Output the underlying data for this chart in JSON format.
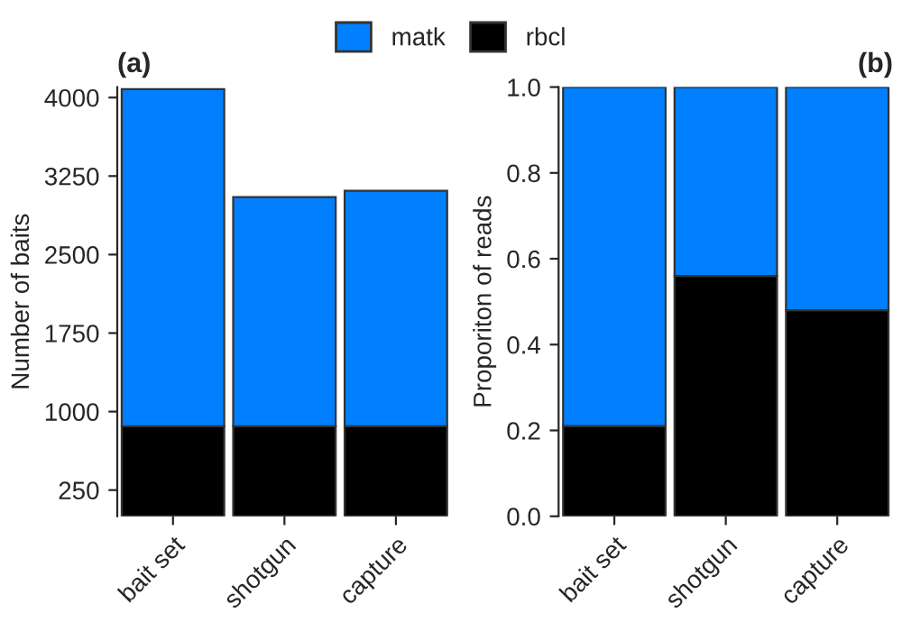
{
  "chart_data": [
    {
      "type": "bar",
      "title": "(a)",
      "ylabel": "Number of baits",
      "categories": [
        "bait set",
        "shotgun",
        "capture"
      ],
      "stacked": true,
      "legend": "top",
      "series": [
        {
          "name": "rbcl",
          "color": "#000000",
          "values": [
            860,
            860,
            860
          ]
        },
        {
          "name": "matk",
          "color": "#0080ff",
          "values": [
            3220,
            2190,
            2250
          ]
        }
      ],
      "ylim": [
        0,
        4100
      ],
      "yticks": [
        250,
        1000,
        1750,
        2500,
        3250,
        4000
      ],
      "grid": false
    },
    {
      "type": "bar",
      "title": "(b)",
      "ylabel": "Proporiton of reads",
      "categories": [
        "bait set",
        "shotgun",
        "capture"
      ],
      "stacked": true,
      "legend": "top",
      "series": [
        {
          "name": "rbcl",
          "color": "#000000",
          "values": [
            0.21,
            0.56,
            0.48
          ]
        },
        {
          "name": "matk",
          "color": "#0080ff",
          "values": [
            0.79,
            0.44,
            0.52
          ]
        }
      ],
      "ylim": [
        0,
        1.0
      ],
      "yticks": [
        {
          "value": 0,
          "label": "0.0"
        },
        0.2,
        0.4,
        0.6,
        0.8,
        {
          "value": 1,
          "label": "1.0"
        }
      ],
      "grid": false
    }
  ]
}
